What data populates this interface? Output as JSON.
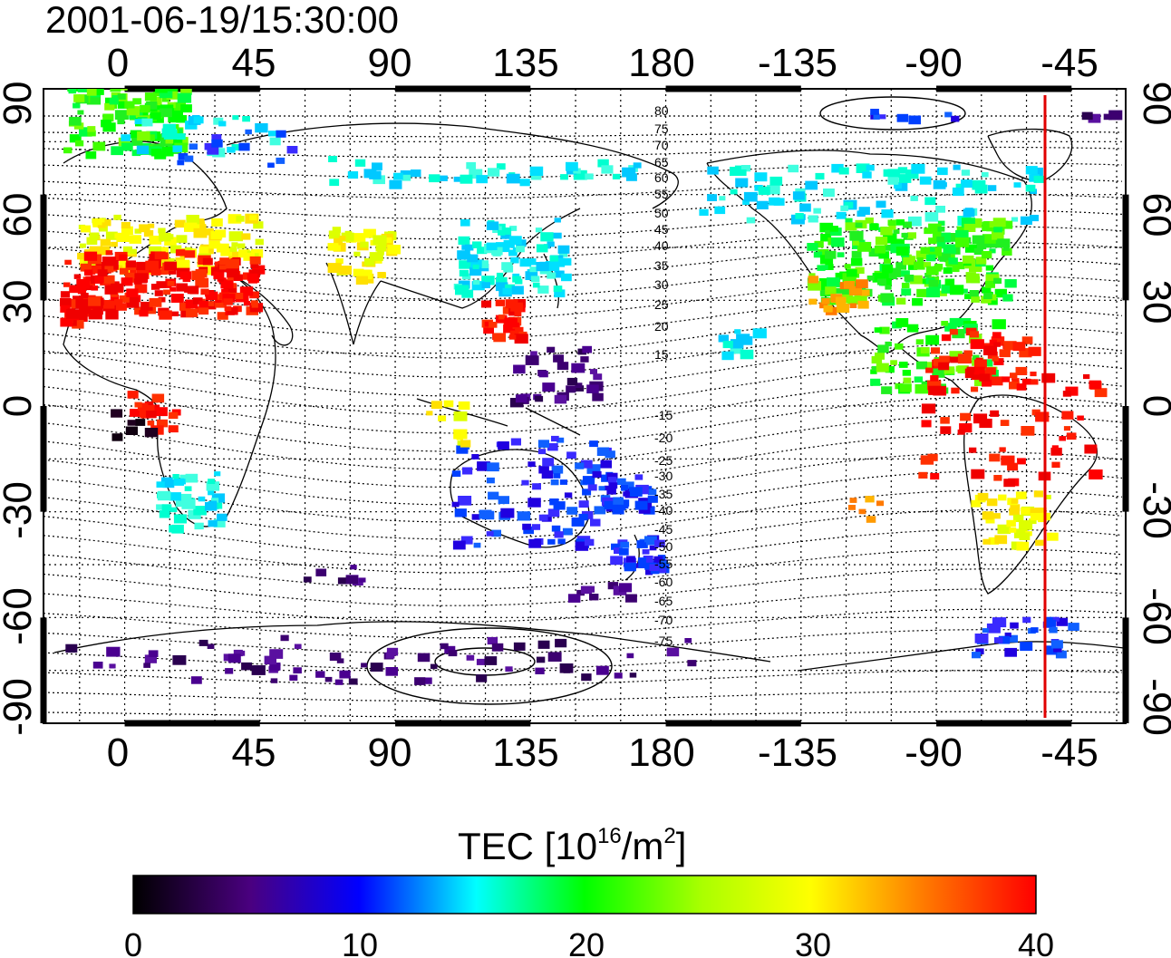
{
  "timestamp": "2001-06-19/15:30:00",
  "lon_ticks": [
    "0",
    "45",
    "90",
    "135",
    "180",
    "-135",
    "-90",
    "-45"
  ],
  "lat_ticks": [
    "90",
    "60",
    "30",
    "0",
    "-30",
    "-60",
    "-90"
  ],
  "contour_labels": [
    "80",
    "75",
    "70",
    "65",
    "60",
    "55",
    "50",
    "45",
    "40",
    "35",
    "30",
    "25",
    "20",
    "15",
    "-15",
    "-20",
    "-25",
    "-30",
    "-35",
    "-40",
    "-45",
    "-50",
    "-55",
    "-60",
    "-65",
    "-70",
    "-75"
  ],
  "colorbar": {
    "title_prefix": "TEC  [10",
    "title_sup": "16",
    "title_mid": "/m",
    "title_sup2": "2",
    "title_suffix": "]",
    "tick_labels": [
      "0",
      "10",
      "20",
      "30",
      "40"
    ],
    "range": [
      0,
      40
    ],
    "colors": [
      "#000000",
      "#5a0090",
      "#0000ff",
      "#00ffff",
      "#00ff00",
      "#ffff00",
      "#ff8000",
      "#ff0000"
    ]
  },
  "terminator_line": {
    "color": "#e00000",
    "longitude_deg": -50
  },
  "map_extent": {
    "lon_range": [
      -27,
      333
    ],
    "lat_range": [
      -90,
      90
    ]
  }
}
